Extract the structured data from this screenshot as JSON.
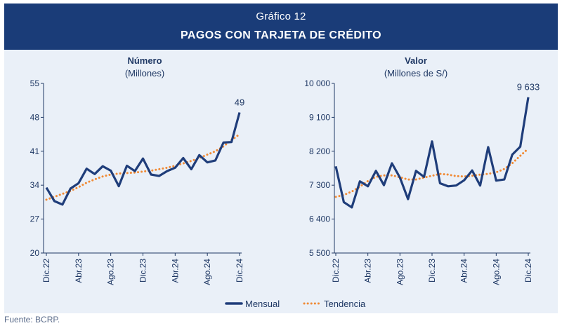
{
  "header": {
    "subtitle": "Gráfico 12",
    "title": "PAGOS CON TARJETA DE CRÉDITO"
  },
  "source": "Fuente: BCRP.",
  "colors": {
    "header_bg": "#1a3c78",
    "panel_bg": "#eaf0f8",
    "mensual": "#1f3d7a",
    "tendencia": "#f08a35",
    "text": "#1f3864"
  },
  "legend": {
    "mensual": "Mensual",
    "tendencia": "Tendencia"
  },
  "chart_data": [
    {
      "type": "line",
      "title": "Número",
      "subtitle": "(Millones)",
      "x": [
        "Dic.22",
        "Ene.23",
        "Feb.23",
        "Mar.23",
        "Abr.23",
        "May.23",
        "Jun.23",
        "Jul.23",
        "Ago.23",
        "Set.23",
        "Oct.23",
        "Nov.23",
        "Dic.23",
        "Ene.24",
        "Feb.24",
        "Mar.24",
        "Abr.24",
        "May.24",
        "Jun.24",
        "Jul.24",
        "Ago.24",
        "Set.24",
        "Oct.24",
        "Nov.24",
        "Dic.24"
      ],
      "xticks": [
        "Dic.22",
        "Abr.23",
        "Ago.23",
        "Dic.23",
        "Abr.24",
        "Ago.24",
        "Dic.24"
      ],
      "yticks": [
        "20",
        "27",
        "34",
        "41",
        "48",
        "55"
      ],
      "ylim": [
        20,
        55
      ],
      "series": [
        {
          "name": "Mensual",
          "values": [
            33.5,
            30.7,
            30.0,
            33.3,
            34.4,
            37.4,
            36.3,
            37.9,
            37.0,
            33.8,
            38.0,
            36.9,
            39.5,
            36.2,
            35.9,
            36.9,
            37.6,
            39.6,
            37.3,
            40.2,
            38.7,
            39.1,
            42.8,
            42.9,
            49.0
          ]
        },
        {
          "name": "Tendencia",
          "values": [
            31.0,
            31.6,
            32.2,
            32.8,
            33.6,
            34.5,
            35.2,
            35.8,
            36.2,
            36.4,
            36.5,
            36.6,
            36.8,
            37.0,
            37.3,
            37.6,
            38.0,
            38.5,
            39.0,
            39.6,
            40.3,
            41.0,
            42.0,
            43.3,
            44.5
          ]
        }
      ],
      "annotation": "49"
    },
    {
      "type": "line",
      "title": "Valor",
      "subtitle": "(Millones de S/)",
      "x": [
        "Dic.22",
        "Ene.23",
        "Feb.23",
        "Mar.23",
        "Abr.23",
        "May.23",
        "Jun.23",
        "Jul.23",
        "Ago.23",
        "Set.23",
        "Oct.23",
        "Nov.23",
        "Dic.23",
        "Ene.24",
        "Feb.24",
        "Mar.24",
        "Abr.24",
        "May.24",
        "Jun.24",
        "Jul.24",
        "Ago.24",
        "Set.24",
        "Oct.24",
        "Nov.24",
        "Dic.24"
      ],
      "xticks": [
        "Dic.22",
        "Abr.23",
        "Ago.23",
        "Dic.23",
        "Abr.24",
        "Ago.24",
        "Dic.24"
      ],
      "yticks": [
        "5 500",
        "6 400",
        "7 300",
        "8 200",
        "9 100",
        "10 000"
      ],
      "ylim": [
        5500,
        10000
      ],
      "series": [
        {
          "name": "Mensual",
          "values": [
            7800,
            6850,
            6710,
            7400,
            7270,
            7680,
            7300,
            7880,
            7500,
            6930,
            7680,
            7520,
            8460,
            7350,
            7270,
            7290,
            7430,
            7690,
            7290,
            8310,
            7420,
            7450,
            8110,
            8320,
            9633
          ]
        },
        {
          "name": "Tendencia",
          "values": [
            6990,
            7040,
            7130,
            7260,
            7410,
            7520,
            7560,
            7560,
            7510,
            7450,
            7450,
            7500,
            7550,
            7600,
            7580,
            7540,
            7530,
            7550,
            7580,
            7600,
            7640,
            7730,
            7880,
            8080,
            8270
          ]
        }
      ],
      "annotation": "9 633"
    }
  ]
}
